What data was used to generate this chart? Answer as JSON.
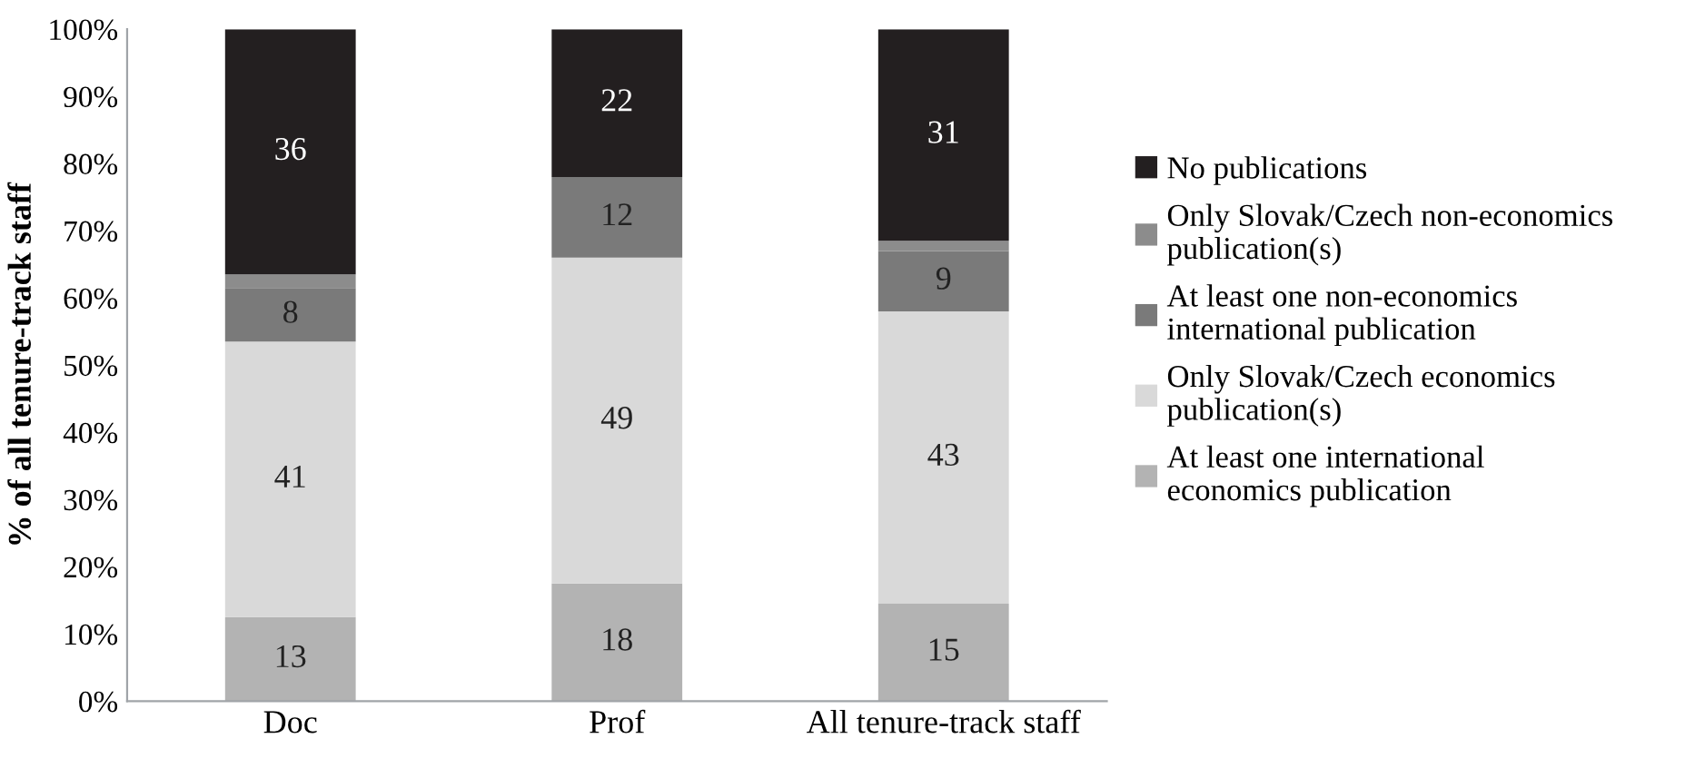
{
  "chart_data": {
    "type": "bar",
    "stacked": true,
    "ylabel": "% of all tenure-track staff",
    "categories": [
      "Doc",
      "Prof",
      "All tenure-track staff"
    ],
    "series": [
      {
        "name": "At least one international\neconomics publication",
        "color": "#b3b3b3",
        "values": [
          12.5,
          17.5,
          14.5
        ],
        "value_labels": [
          "13",
          "18",
          "15"
        ]
      },
      {
        "name": "Only Slovak/Czech economics\npublication(s)",
        "color": "#d9d9d9",
        "values": [
          41,
          48.5,
          43.5
        ],
        "value_labels": [
          "41",
          "49",
          "43"
        ]
      },
      {
        "name": "At least one non-economics\ninternational publication",
        "color": "#7a7a7a",
        "values": [
          8,
          12,
          9
        ],
        "value_labels": [
          "8",
          "12",
          "9"
        ]
      },
      {
        "name": "Only Slovak/Czech non-economics\npublication(s)",
        "color": "#8c8c8c",
        "values": [
          2,
          0,
          1.5
        ],
        "value_labels": [
          null,
          null,
          null
        ]
      },
      {
        "name": "No publications",
        "color": "#231f20",
        "values": [
          36.5,
          22,
          31.5
        ],
        "value_labels": [
          "36",
          "22",
          "31"
        ]
      }
    ],
    "ylim": [
      0,
      100
    ],
    "yticks": [
      {
        "value": 0,
        "label": "0%"
      },
      {
        "value": 10,
        "label": "10%"
      },
      {
        "value": 20,
        "label": "20%"
      },
      {
        "value": 30,
        "label": "30%"
      },
      {
        "value": 40,
        "label": "40%"
      },
      {
        "value": 50,
        "label": "50%"
      },
      {
        "value": 60,
        "label": "60%"
      },
      {
        "value": 70,
        "label": "70%"
      },
      {
        "value": 80,
        "label": "80%"
      },
      {
        "value": 90,
        "label": "90%"
      },
      {
        "value": 100,
        "label": "100%"
      }
    ],
    "grid": false,
    "legend": "right"
  }
}
